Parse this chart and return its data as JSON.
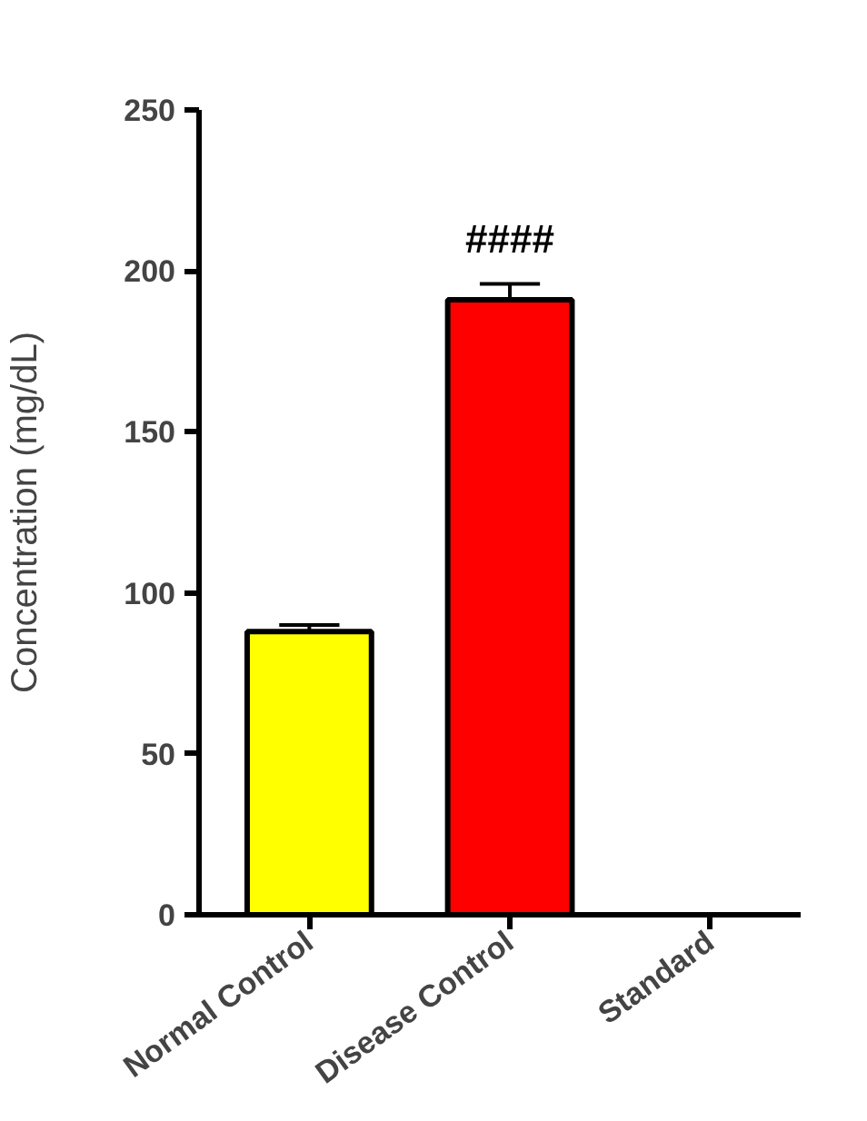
{
  "chart_data": {
    "type": "bar",
    "ylabel": "Concentration (mg/dL)",
    "categories": [
      "Normal Control",
      "Disease Control",
      "Standard"
    ],
    "values": [
      88,
      191,
      null
    ],
    "errors": [
      2,
      5,
      null
    ],
    "colors": [
      "#ffff00",
      "#ff0000",
      "#ff0000"
    ],
    "ylim": [
      0,
      250
    ],
    "yticks": [
      0,
      50,
      100,
      150,
      200,
      250
    ],
    "annotations": [
      "####"
    ],
    "grid": false
  }
}
